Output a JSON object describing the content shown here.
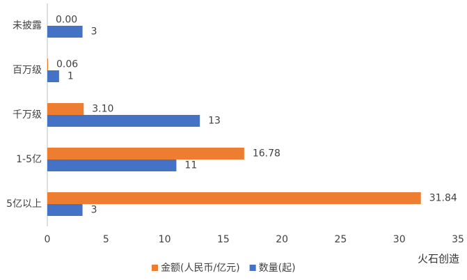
{
  "chart_data": {
    "type": "hbar",
    "categories": [
      "未披露",
      "百万级",
      "千万级",
      "1-5亿",
      "5亿以上"
    ],
    "series": [
      {
        "name": "金额(人民币/亿元)",
        "color": "#ED7D31",
        "values": [
          0,
          0.06,
          3.1,
          16.78,
          31.84
        ],
        "value_labels": [
          "0.00",
          "0.06",
          "3.10",
          "16.78",
          "31.84"
        ]
      },
      {
        "name": "数量(起)",
        "color": "#4472C4",
        "values": [
          3,
          1,
          13,
          11,
          3
        ]
      }
    ],
    "xlim": [
      0,
      35
    ],
    "xticks": [
      0,
      5,
      10,
      15,
      20,
      25,
      30,
      35
    ],
    "grid": false,
    "legend": "bottom",
    "watermark": "火石创造"
  }
}
